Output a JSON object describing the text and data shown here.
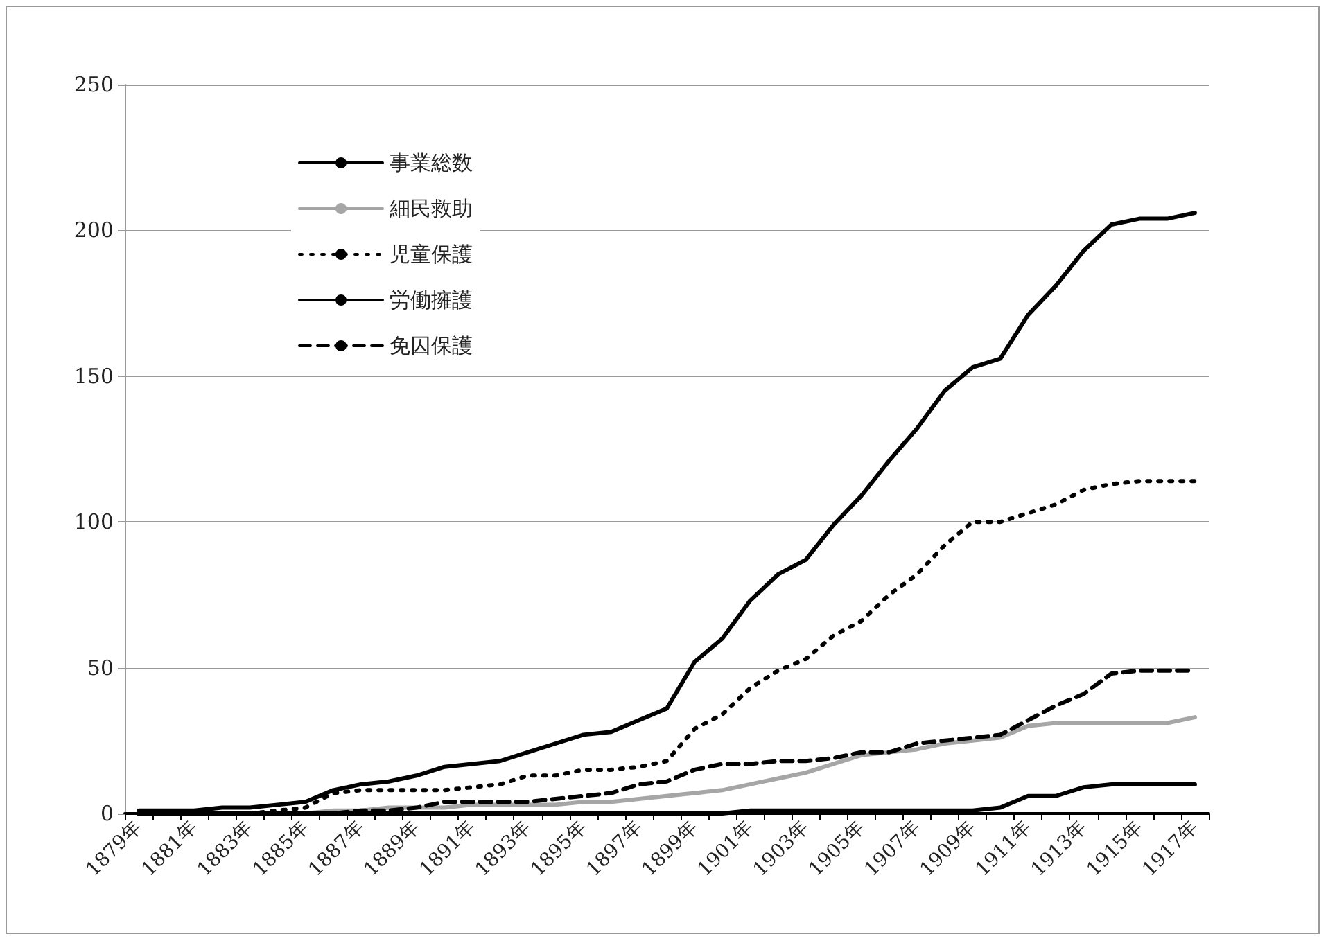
{
  "chart_data": {
    "type": "line",
    "categories": [
      "1879年",
      null,
      "1881年",
      null,
      "1883年",
      null,
      "1885年",
      null,
      "1887年",
      null,
      "1889年",
      null,
      "1891年",
      null,
      "1893年",
      null,
      "1895年",
      null,
      "1897年",
      null,
      "1899年",
      null,
      "1901年",
      null,
      "1903年",
      null,
      "1905年",
      null,
      "1907年",
      null,
      "1909年",
      null,
      "1911年",
      null,
      "1913年",
      null,
      "1915年",
      null,
      "1917年"
    ],
    "series": [
      {
        "name": "事業総数",
        "color": "#000000",
        "line_style": "solid",
        "values": [
          1,
          1,
          1,
          2,
          2,
          3,
          4,
          8,
          10,
          11,
          13,
          16,
          17,
          18,
          21,
          24,
          27,
          28,
          32,
          36,
          52,
          60,
          73,
          82,
          87,
          99,
          109,
          121,
          132,
          145,
          153,
          156,
          171,
          181,
          193,
          202,
          204,
          204,
          206
        ]
      },
      {
        "name": "細民救助",
        "color": "#a6a6a6",
        "line_style": "solid",
        "values": [
          0,
          0,
          0,
          0,
          0,
          0,
          0,
          1,
          1,
          2,
          2,
          2,
          3,
          3,
          3,
          3,
          4,
          4,
          5,
          6,
          7,
          8,
          10,
          12,
          14,
          17,
          20,
          21,
          22,
          24,
          25,
          26,
          30,
          31,
          31,
          31,
          31,
          31,
          33
        ]
      },
      {
        "name": "児童保護",
        "color": "#000000",
        "line_style": "dotted",
        "values": [
          0,
          0,
          0,
          0,
          0,
          1,
          2,
          7,
          8,
          8,
          8,
          8,
          9,
          10,
          13,
          13,
          15,
          15,
          16,
          18,
          29,
          34,
          43,
          49,
          53,
          61,
          66,
          75,
          82,
          92,
          100,
          100,
          103,
          106,
          111,
          113,
          114,
          114,
          114
        ]
      },
      {
        "name": "労働擁護",
        "color": "#000000",
        "line_style": "solid",
        "values": [
          0,
          0,
          0,
          0,
          0,
          0,
          0,
          0,
          0,
          0,
          0,
          0,
          0,
          0,
          0,
          0,
          0,
          0,
          0,
          0,
          0,
          0,
          1,
          1,
          1,
          1,
          1,
          1,
          1,
          1,
          1,
          2,
          6,
          6,
          9,
          10,
          10,
          10,
          10
        ]
      },
      {
        "name": "免囚保護",
        "color": "#000000",
        "line_style": "dashed",
        "values": [
          0,
          0,
          0,
          0,
          0,
          0,
          0,
          0,
          1,
          1,
          2,
          4,
          4,
          4,
          4,
          5,
          6,
          7,
          10,
          11,
          15,
          17,
          17,
          18,
          18,
          19,
          21,
          21,
          24,
          25,
          26,
          27,
          32,
          37,
          41,
          48,
          49,
          49,
          49
        ]
      }
    ],
    "ylim": [
      0,
      250
    ],
    "yticks": [
      0,
      50,
      100,
      150,
      200,
      250
    ],
    "grid": "y",
    "legend": "top left",
    "marker": "none"
  }
}
